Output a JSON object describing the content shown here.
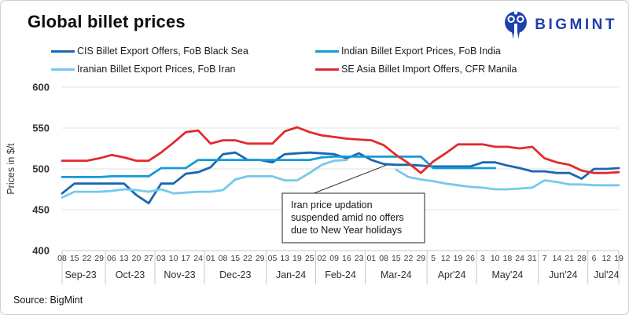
{
  "header": {
    "title": "Global billet prices"
  },
  "brand": {
    "name": "BIGMINT",
    "color": "#1e3fae"
  },
  "footer": {
    "source": "Source: BigMint"
  },
  "annotation": {
    "lines": [
      "Iran price updation",
      "suspended amid no offers",
      "due to New Year holidays"
    ]
  },
  "chart_data": {
    "type": "line",
    "title": "Global billet prices",
    "xlabel": "",
    "ylabel": "Prices in $/t",
    "ylim": [
      400,
      600
    ],
    "yticks": [
      400,
      450,
      500,
      550,
      600
    ],
    "grid": true,
    "legend_position": "top",
    "x_months": [
      {
        "label": "Sep-23",
        "days": [
          "08",
          "15",
          "22",
          "29"
        ]
      },
      {
        "label": "Oct-23",
        "days": [
          "06",
          "13",
          "20",
          "27"
        ]
      },
      {
        "label": "Nov-23",
        "days": [
          "03",
          "10",
          "17",
          "24"
        ]
      },
      {
        "label": "Dec-23",
        "days": [
          "01",
          "08",
          "15",
          "22",
          "29"
        ]
      },
      {
        "label": "Jan-24",
        "days": [
          "05",
          "13",
          "19",
          "25"
        ]
      },
      {
        "label": "Feb-24",
        "days": [
          "02",
          "09",
          "16",
          "23"
        ]
      },
      {
        "label": "Mar-24",
        "days": [
          "01",
          "08",
          "15",
          "22",
          "29"
        ]
      },
      {
        "label": "Apr'24",
        "days": [
          "5",
          "12",
          "19",
          "26"
        ]
      },
      {
        "label": "May'24",
        "days": [
          "3",
          "10",
          "18",
          "24",
          "31"
        ]
      },
      {
        "label": "Jun'24",
        "days": [
          "7",
          "14",
          "21",
          "28"
        ]
      },
      {
        "label": "Jul'24",
        "days": [
          "6",
          "12",
          "19"
        ]
      }
    ],
    "series": [
      {
        "id": "cis",
        "name": "CIS Billet Export Offers, FoB Black Sea",
        "color": "#1a67b1",
        "values": [
          470,
          482,
          482,
          482,
          482,
          482,
          468,
          458,
          482,
          482,
          494,
          496,
          502,
          518,
          520,
          511,
          511,
          508,
          518,
          519,
          520,
          519,
          518,
          513,
          519,
          511,
          506,
          505,
          505,
          504,
          503,
          503,
          503,
          503,
          508,
          508,
          504,
          501,
          497,
          497,
          495,
          495,
          488,
          500,
          500,
          501
        ]
      },
      {
        "id": "indian",
        "name": "Indian Billet Export Prices, FoB India",
        "color": "#149bd8",
        "values": [
          490,
          490,
          490,
          490,
          491,
          491,
          491,
          491,
          501,
          501,
          501,
          511,
          511,
          511,
          511,
          511,
          511,
          511,
          511,
          511,
          511,
          514,
          515,
          515,
          515,
          515,
          515,
          515,
          515,
          515,
          501,
          501,
          501,
          501,
          501,
          501,
          null,
          null,
          null,
          null,
          null,
          null,
          null,
          null,
          null,
          null
        ]
      },
      {
        "id": "iranian",
        "name": "Iranian Billet Export Prices, FoB Iran",
        "color": "#74c9ee",
        "values": [
          465,
          472,
          472,
          472,
          473,
          475,
          474,
          472,
          475,
          470,
          471,
          472,
          472,
          474,
          487,
          491,
          491,
          491,
          486,
          486,
          495,
          505,
          510,
          511,
          null,
          null,
          null,
          499,
          490,
          487,
          485,
          482,
          480,
          478,
          477,
          475,
          475,
          476,
          477,
          486,
          484,
          481,
          481,
          480,
          480,
          480
        ]
      },
      {
        "id": "se-asia",
        "name": "SE Asia Billet Import Offers, CFR Manila",
        "color": "#e22a2e",
        "values": [
          510,
          510,
          510,
          513,
          517,
          514,
          510,
          510,
          520,
          532,
          545,
          547,
          531,
          535,
          535,
          531,
          531,
          531,
          546,
          551,
          545,
          541,
          539,
          537,
          536,
          535,
          529,
          517,
          507,
          495,
          509,
          519,
          530,
          530,
          530,
          527,
          527,
          525,
          527,
          513,
          508,
          505,
          498,
          495,
          495,
          496
        ]
      }
    ]
  }
}
